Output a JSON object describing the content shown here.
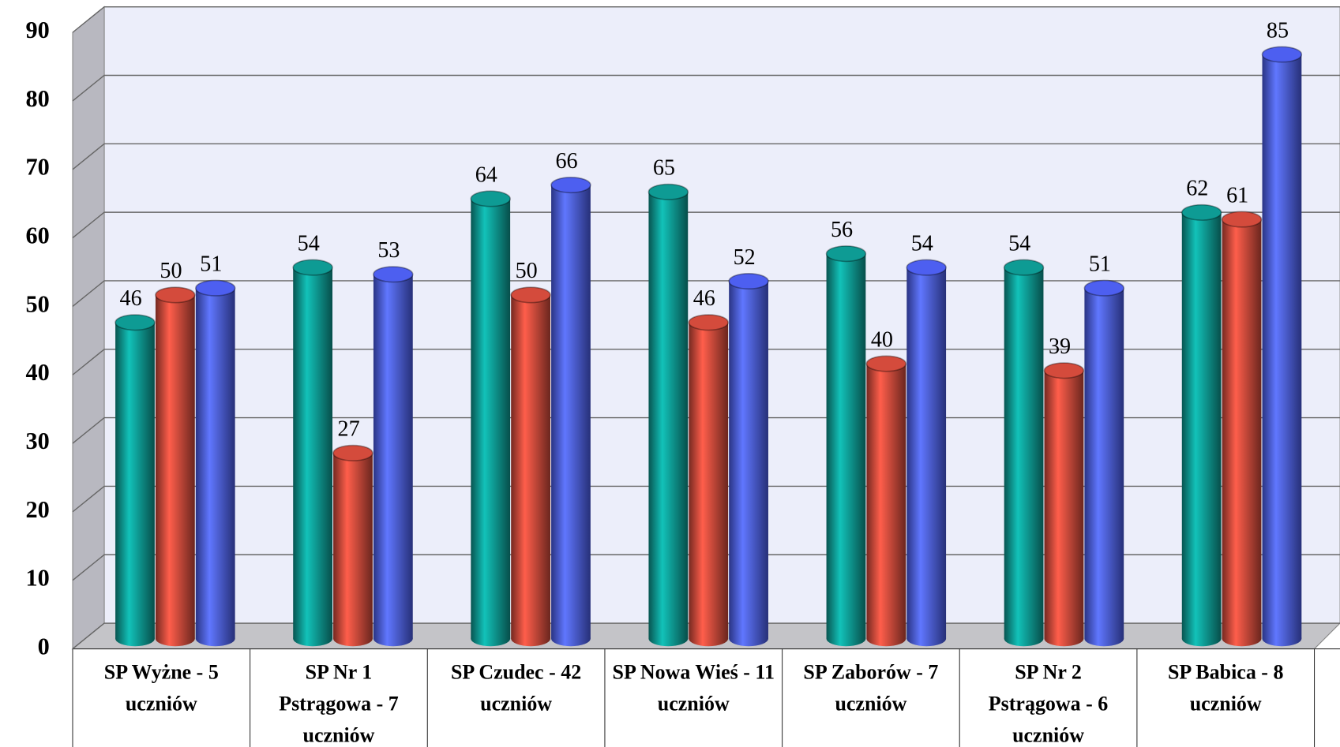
{
  "chart_data": {
    "type": "bar",
    "categories": [
      "SP Wyżne - 5 uczniów",
      "SP Nr 1 Pstrągowa - 7 uczniów",
      "SP Czudec - 42 uczniów",
      "SP Nowa Wieś - 11 uczniów",
      "SP Zaborów - 7 uczniów",
      "SP Nr 2 Pstrągowa - 6 uczniów",
      "SP Babica - 8 uczniów"
    ],
    "series": [
      {
        "color": "#0e9b94",
        "values": [
          46,
          54,
          64,
          65,
          56,
          54,
          62
        ]
      },
      {
        "color": "#d44b3c",
        "values": [
          50,
          27,
          50,
          46,
          40,
          39,
          61
        ]
      },
      {
        "color": "#4d5ff0",
        "values": [
          51,
          53,
          66,
          52,
          54,
          51,
          85
        ]
      }
    ],
    "ylim": [
      0,
      90
    ],
    "yticks": [
      0,
      10,
      20,
      30,
      40,
      50,
      60,
      70,
      80,
      90
    ],
    "grid": true
  }
}
